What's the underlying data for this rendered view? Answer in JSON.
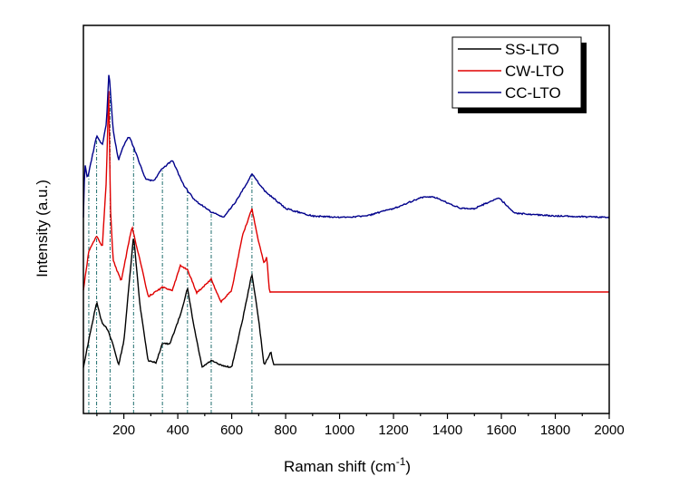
{
  "chart_data": {
    "type": "line",
    "xlabel": "Raman shift (cm",
    "xlabel_sup": "-1",
    "xlabel_end": ")",
    "ylabel": "Intensity (a.u.)",
    "xlim": [
      50,
      2000
    ],
    "ylim": [
      0,
      100
    ],
    "xticks": [
      200,
      400,
      600,
      800,
      1000,
      1200,
      1400,
      1600,
      1800,
      2000
    ],
    "xtick_labels": [
      "200",
      "400",
      "600",
      "800",
      "1000",
      "1200",
      "1400",
      "1600",
      "1800",
      "2000"
    ],
    "yticks_shown": false,
    "grid": false,
    "legend_position": "top-right",
    "reference_lines": [
      70,
      99,
      149,
      236,
      343,
      436,
      524,
      675
    ],
    "reference_line_color": "#1f6e6e",
    "series": [
      {
        "name": "SS-LTO",
        "color": "#000000",
        "x": [
          50,
          70,
          99,
          120,
          140,
          160,
          180,
          200,
          236,
          260,
          290,
          320,
          343,
          370,
          410,
          436,
          460,
          490,
          524,
          560,
          600,
          640,
          675,
          700,
          720,
          745,
          755,
          800,
          2000
        ],
        "y": [
          11.9,
          18.9,
          28.7,
          23.1,
          21.7,
          17.8,
          12.4,
          18.5,
          45.8,
          27.8,
          13.6,
          13.1,
          18.2,
          17.8,
          25.5,
          32.2,
          22.4,
          11.9,
          13.6,
          12.4,
          11.9,
          24.1,
          36.0,
          24.1,
          12.4,
          15.9,
          12.6,
          12.6,
          12.6
        ]
      },
      {
        "name": "CW-LTO",
        "color": "#e00000",
        "x": [
          50,
          70,
          99,
          120,
          135,
          144,
          150,
          160,
          190,
          230,
          260,
          290,
          343,
          380,
          410,
          436,
          470,
          524,
          560,
          600,
          640,
          675,
          700,
          720,
          730,
          740,
          800,
          2000
        ],
        "y": [
          31.8,
          41.8,
          45.8,
          42.8,
          60,
          83.9,
          53.5,
          39.5,
          34.1,
          48.1,
          39.5,
          30.1,
          32.5,
          31.8,
          38.1,
          37.1,
          31.1,
          34.6,
          28.7,
          31.8,
          45.8,
          52.8,
          44.2,
          38.8,
          40.4,
          31.3,
          31.3,
          31.3
        ]
      },
      {
        "name": "CC-LTO",
        "color": "#00008b",
        "x": [
          50,
          55,
          65,
          99,
          120,
          135,
          145,
          160,
          180,
          200,
          220,
          250,
          280,
          310,
          340,
          380,
          420,
          460,
          520,
          570,
          620,
          675,
          720,
          800,
          900,
          1000,
          1100,
          1200,
          1300,
          1350,
          1450,
          1500,
          1590,
          1650,
          1800,
          2000
        ],
        "y": [
          50.5,
          64.5,
          60.5,
          71.5,
          69.2,
          74.5,
          88.3,
          73.1,
          65.2,
          69.2,
          71.5,
          66.1,
          60.5,
          59.8,
          62.9,
          65.2,
          59.1,
          55.1,
          52.1,
          50.5,
          55.1,
          61.7,
          57.5,
          52.8,
          50.9,
          50.5,
          50.9,
          52.8,
          55.6,
          55.8,
          52.8,
          52.8,
          55.6,
          51.6,
          50.9,
          50.5
        ]
      }
    ]
  }
}
